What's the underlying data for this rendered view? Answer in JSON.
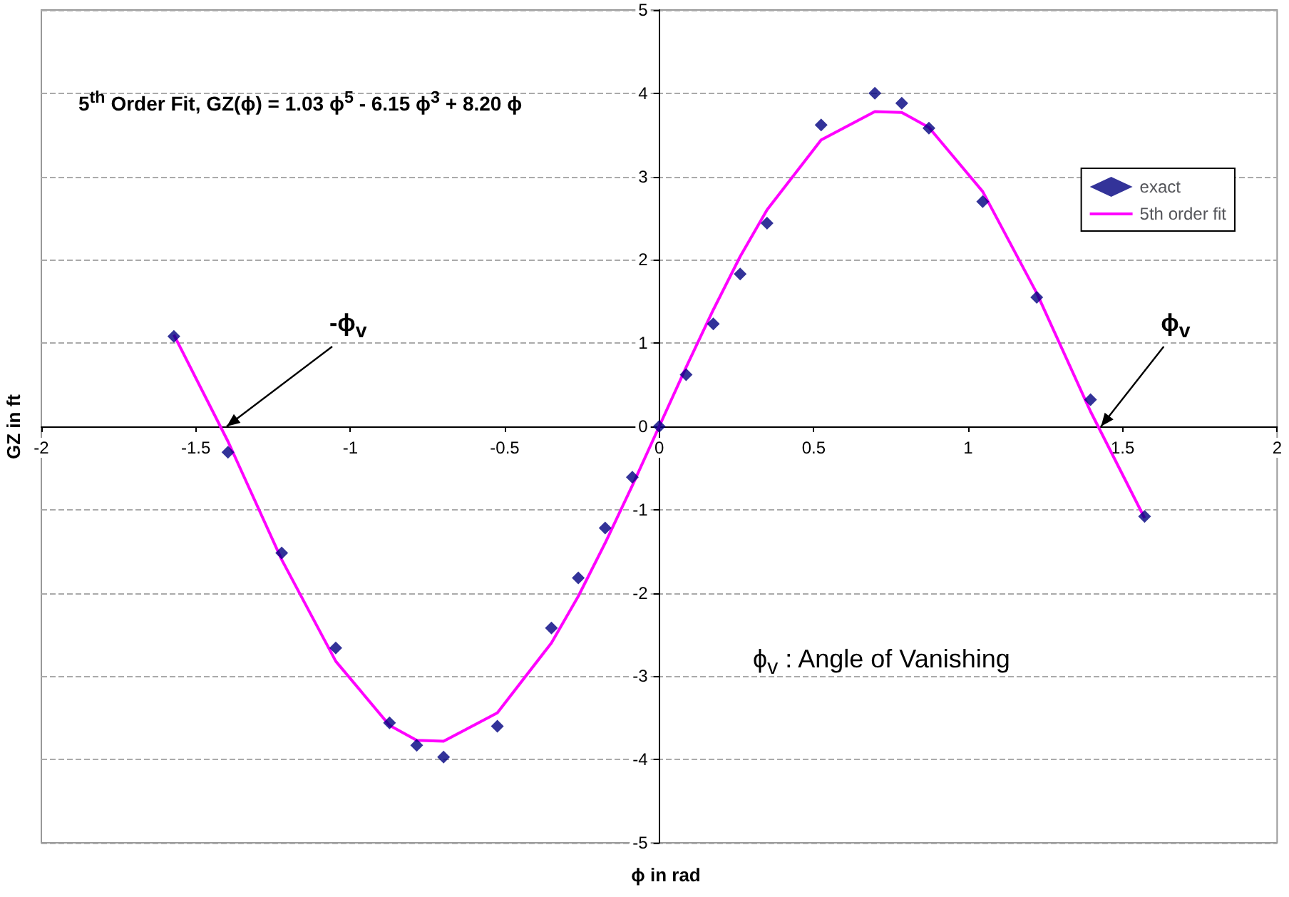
{
  "chart_data": {
    "type": "scatter",
    "xlabel": "ϕ in rad",
    "ylabel": "GZ in ft",
    "x": [
      -1.571,
      -1.396,
      -1.222,
      -1.047,
      -0.873,
      -0.785,
      -0.698,
      -0.524,
      -0.349,
      -0.262,
      -0.175,
      -0.087,
      0,
      0.087,
      0.175,
      0.262,
      0.349,
      0.524,
      0.698,
      0.785,
      0.873,
      1.047,
      1.222,
      1.396,
      1.571
    ],
    "series": [
      {
        "name": "exact",
        "color": "#000080",
        "values": [
          1.08,
          -0.31,
          -1.52,
          -2.66,
          -3.56,
          -3.83,
          -3.97,
          -3.6,
          -2.42,
          -1.82,
          -1.22,
          -0.61,
          0,
          0.62,
          1.23,
          1.83,
          2.44,
          3.62,
          4.0,
          3.88,
          3.58,
          2.7,
          1.55,
          0.32,
          -1.08
        ]
      },
      {
        "name": "5th order fit",
        "type": "line",
        "marker": "none",
        "color": "#ff00ff",
        "values": [
          1.1,
          -0.18,
          -1.6,
          -2.82,
          -3.59,
          -3.77,
          -3.78,
          -3.44,
          -2.6,
          -2.04,
          -1.4,
          -0.71,
          0,
          0.71,
          1.4,
          2.04,
          2.6,
          3.44,
          3.78,
          3.77,
          3.59,
          2.82,
          1.6,
          0.18,
          -1.1
        ]
      }
    ],
    "xlim": [
      -2,
      2
    ],
    "xticks": [
      -2,
      -1.5,
      -1,
      -0.5,
      0,
      0.5,
      1,
      1.5,
      2
    ],
    "ylim": [
      -5,
      5
    ],
    "yticks": [
      -5,
      -4,
      -3,
      -2,
      -1,
      0,
      1,
      2,
      3,
      4,
      5
    ],
    "grid": "y",
    "legend": "top right",
    "marker": "diamond",
    "line_style": "solid",
    "annotations": [
      "5$^{th}$ Order Fit,  GZ(ϕ) = 1.03 ϕ$^{5}$ - 6.15 ϕ$^{3}$ + 8.20 ϕ",
      "ϕ$_{v}$ : Angle of Vanishing",
      {
        "text": "-ϕ$_{v}$",
        "x": -1.4,
        "y": 0
      },
      {
        "text": "ϕ$_{v}$",
        "x": 1.43,
        "y": 0
      }
    ]
  }
}
